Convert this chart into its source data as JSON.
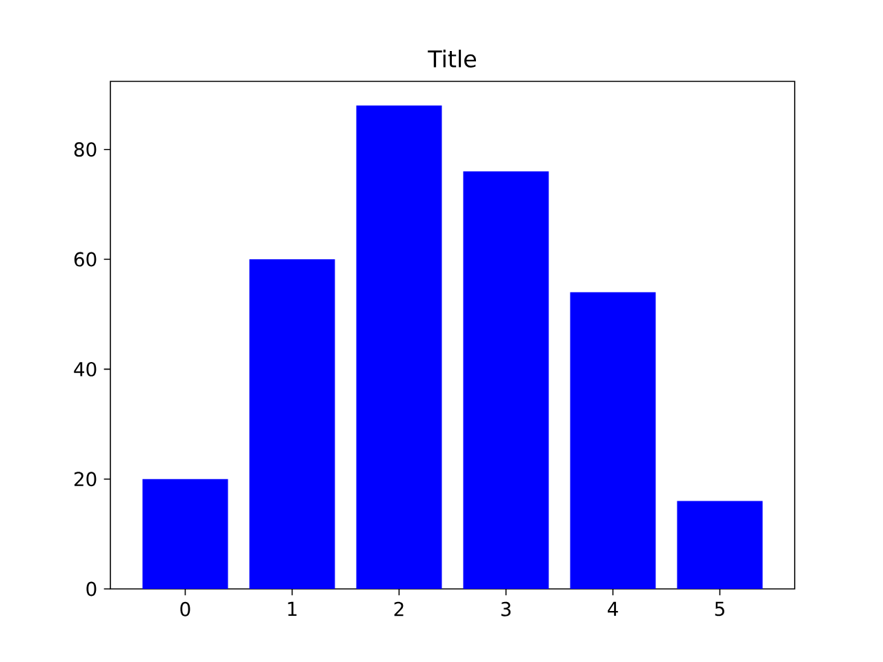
{
  "chart_data": {
    "type": "bar",
    "title": "Title",
    "categories": [
      "0",
      "1",
      "2",
      "3",
      "4",
      "5"
    ],
    "values": [
      20,
      60,
      88,
      76,
      54,
      16
    ],
    "color": "#0000ff",
    "ylim": [
      0,
      92.4
    ],
    "yticks": [
      0,
      20,
      40,
      60,
      80
    ]
  }
}
